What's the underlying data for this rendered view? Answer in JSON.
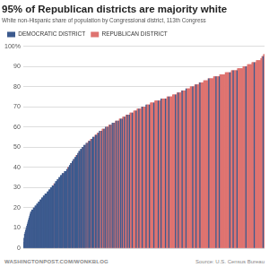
{
  "chart_data": {
    "type": "bar",
    "title": "95% of Republican districts are majority white",
    "subtitle": "White non-Hispanic share of population by Congressional district, 113th Congress",
    "credit": "WASHINGTONPOST.COM/WONKBLOG",
    "source": "Source: U.S. Census Bureau",
    "legend": "top-left",
    "grid": true,
    "tick_labels": "y",
    "ylim": [
      0,
      100
    ],
    "yticks": [
      0,
      10,
      20,
      30,
      40,
      50,
      60,
      70,
      80,
      90,
      {
        "value": 100,
        "label": "100%"
      }
    ],
    "categories": [
      null,
      null,
      null,
      null,
      null,
      null,
      null,
      null,
      null,
      null,
      null,
      null,
      null,
      null,
      null,
      null,
      null,
      null,
      null,
      null,
      null,
      null,
      null,
      null,
      null,
      null,
      null,
      null,
      null,
      null,
      null,
      null,
      null,
      null,
      null,
      null,
      null,
      null,
      null,
      null,
      null,
      null,
      null,
      null,
      null,
      null,
      null,
      null,
      null,
      null,
      null,
      null,
      null,
      null,
      null,
      null,
      null,
      null,
      null,
      null,
      null,
      null,
      null,
      null,
      null,
      null,
      null,
      null,
      null,
      null,
      null,
      null,
      null,
      null,
      null,
      null,
      null,
      null,
      null,
      null,
      null,
      null,
      null,
      null,
      null,
      null,
      null,
      null,
      null,
      null,
      null,
      null,
      null,
      null,
      null,
      null,
      null,
      null,
      null,
      null,
      null,
      null,
      null,
      null,
      null,
      null,
      null,
      null,
      null,
      null,
      null,
      null,
      null,
      null,
      null,
      null,
      null,
      null,
      null,
      null,
      null,
      null,
      null,
      null,
      null,
      null,
      null,
      null,
      null,
      null,
      null,
      null,
      null,
      null,
      null,
      null,
      null,
      null,
      null,
      null,
      null,
      null,
      null,
      null,
      null,
      null,
      null,
      null,
      null,
      null,
      null,
      null,
      null,
      null,
      null,
      null,
      null,
      null,
      null,
      null,
      null,
      null,
      null,
      null,
      null,
      null,
      null,
      null,
      null,
      null,
      null,
      null,
      null,
      null,
      null,
      null,
      null,
      null,
      null,
      null,
      null,
      null,
      null,
      null,
      null,
      null,
      null,
      null,
      null,
      null,
      null,
      null,
      null,
      null,
      null,
      null,
      null,
      null,
      null,
      null,
      null,
      null,
      null,
      null,
      null,
      null,
      null,
      null,
      null,
      null,
      null,
      null,
      null,
      null,
      null,
      null,
      null,
      null,
      null,
      null,
      null,
      null,
      null,
      null,
      null,
      null,
      null,
      null,
      null,
      null,
      null,
      null,
      null,
      null,
      null,
      null,
      null,
      null,
      null,
      null,
      null,
      null,
      null,
      null,
      null,
      null,
      null,
      null,
      null,
      null,
      null,
      null,
      null,
      null,
      null,
      null,
      null,
      null,
      null,
      null,
      null,
      null,
      null,
      null,
      null,
      null,
      null,
      null,
      null,
      null,
      null,
      null,
      null,
      null,
      null,
      null,
      null,
      null,
      null,
      null,
      null,
      null,
      null,
      null,
      null,
      null,
      null,
      null,
      null,
      null,
      null,
      null,
      null,
      null,
      null,
      null,
      null,
      null,
      null,
      null,
      null,
      null,
      null,
      null,
      null,
      null,
      null,
      null,
      null,
      null,
      null,
      null,
      null,
      null,
      null,
      null,
      null,
      null,
      null,
      null,
      null,
      null,
      null,
      null,
      null,
      null,
      null,
      null,
      null,
      null,
      null,
      null,
      null,
      null,
      null,
      null,
      null,
      null,
      null,
      null,
      null,
      null,
      null,
      null,
      null,
      null,
      null,
      null,
      null,
      null,
      null,
      null,
      null,
      null,
      null,
      null,
      null,
      null,
      null,
      null,
      null,
      null,
      null,
      null,
      null,
      null,
      null,
      null,
      null,
      null,
      null,
      null,
      null,
      null,
      null,
      null,
      null,
      null,
      null,
      null,
      null,
      null,
      null,
      null,
      null,
      null,
      null,
      null,
      null,
      null,
      null,
      null,
      null,
      null,
      null,
      null,
      null,
      null,
      null,
      null,
      null,
      null,
      null,
      null,
      null,
      null,
      null,
      null,
      null,
      null,
      null,
      null,
      null,
      null,
      null,
      null,
      null,
      null,
      null,
      null,
      null,
      null,
      null,
      null,
      null,
      null,
      null,
      null,
      null,
      null,
      null,
      null,
      null,
      null,
      null
    ],
    "series": [
      {
        "name": "DEMOCRATIC DISTRICT",
        "color": "#3c5a8e",
        "values": [
          3,
          5,
          7,
          8,
          9,
          10,
          11,
          12,
          13,
          14,
          15,
          16,
          17,
          18,
          18,
          19,
          19,
          19,
          20,
          20,
          20,
          21,
          21,
          21,
          22,
          22,
          22,
          23,
          23,
          23,
          24,
          24,
          24,
          25,
          25,
          25,
          26,
          26,
          26,
          27,
          null,
          27,
          27,
          28,
          28,
          28,
          29,
          29,
          29,
          30,
          30,
          30,
          31,
          31,
          31,
          null,
          32,
          32,
          33,
          33,
          33,
          34,
          34,
          null,
          35,
          35,
          35,
          36,
          36,
          36,
          37,
          37,
          null,
          37,
          38,
          38,
          38,
          38,
          39,
          39,
          null,
          40,
          40,
          41,
          41,
          42,
          null,
          42,
          43,
          43,
          44,
          null,
          44,
          45,
          45,
          null,
          46,
          46,
          47,
          null,
          48,
          48,
          null,
          49,
          49,
          null,
          50,
          null,
          50,
          51,
          null,
          51,
          null,
          52,
          null,
          null,
          52,
          null,
          53,
          null,
          53,
          null,
          null,
          54,
          null,
          55,
          null,
          55,
          null,
          null,
          56,
          null,
          56,
          null,
          null,
          57,
          null,
          58,
          null,
          null,
          null,
          58,
          null,
          null,
          null,
          59,
          null,
          null,
          60,
          null,
          null,
          null,
          60,
          null,
          null,
          null,
          61,
          null,
          null,
          null,
          62,
          null,
          null,
          62,
          null,
          null,
          null,
          63,
          null,
          null,
          null,
          63,
          null,
          null,
          null,
          64,
          null,
          null,
          64,
          null,
          null,
          null,
          65,
          null,
          null,
          null,
          null,
          66,
          null,
          null,
          null,
          66,
          null,
          null,
          null,
          null,
          67,
          null,
          null,
          null,
          null,
          null,
          null,
          68,
          null,
          null,
          null,
          null,
          69,
          null,
          null,
          null,
          null,
          null,
          70,
          null,
          null,
          null,
          null,
          null,
          null,
          71,
          null,
          null,
          null,
          null,
          null,
          71,
          null,
          null,
          null,
          null,
          null,
          null,
          null,
          72,
          null,
          null,
          null,
          null,
          null,
          null,
          null,
          73,
          null,
          null,
          null,
          null,
          74,
          null,
          null,
          null,
          null,
          null,
          null,
          null,
          74,
          null,
          null,
          null,
          null,
          null,
          75,
          null,
          null,
          null,
          null,
          null,
          null,
          null,
          null,
          null,
          null,
          null,
          76,
          null,
          null,
          null,
          null,
          77,
          null,
          null,
          null,
          null,
          null,
          null,
          78,
          null,
          null,
          null,
          null,
          null,
          null,
          79,
          null,
          null,
          null,
          null,
          null,
          null,
          null,
          null,
          null,
          null,
          null,
          80,
          null,
          null,
          null,
          null,
          null,
          81,
          null,
          null,
          null,
          null,
          null,
          null,
          82,
          null,
          null,
          null,
          null,
          null,
          null,
          null,
          null,
          null,
          null,
          null,
          null,
          null,
          null,
          null,
          84,
          null,
          null,
          null,
          null,
          null,
          null,
          null,
          null,
          null,
          null,
          null,
          null,
          85,
          null,
          null,
          null,
          null,
          null,
          85,
          null,
          null,
          null,
          null,
          null,
          null,
          null,
          null,
          null,
          null,
          null,
          null,
          null,
          null,
          null,
          null,
          null,
          null,
          87,
          null,
          null,
          null,
          null,
          null,
          88,
          null,
          null,
          null,
          null,
          null,
          null,
          88,
          null,
          null,
          null,
          null,
          null,
          null,
          null,
          null,
          null,
          null,
          null,
          null,
          null,
          null,
          null,
          90,
          null,
          null,
          null,
          null,
          null,
          null,
          null,
          null,
          null,
          null,
          null,
          null,
          null,
          null,
          92,
          null,
          null,
          null,
          null,
          null,
          null,
          null,
          null,
          null,
          null,
          null,
          null,
          null,
          null,
          null,
          95,
          null,
          null
        ]
      },
      {
        "name": "REPUBLICAN DISTRICT",
        "color": "#de7370",
        "values": [
          null,
          null,
          null,
          null,
          null,
          null,
          null,
          null,
          null,
          null,
          null,
          null,
          null,
          null,
          null,
          null,
          null,
          null,
          null,
          null,
          null,
          null,
          null,
          null,
          null,
          null,
          null,
          null,
          null,
          null,
          null,
          null,
          null,
          null,
          null,
          null,
          null,
          null,
          null,
          null,
          27,
          null,
          null,
          null,
          null,
          null,
          null,
          null,
          null,
          null,
          null,
          null,
          null,
          null,
          null,
          32,
          null,
          null,
          null,
          null,
          null,
          null,
          null,
          34,
          null,
          null,
          null,
          null,
          null,
          null,
          null,
          null,
          37,
          null,
          null,
          null,
          null,
          null,
          null,
          null,
          40,
          null,
          null,
          null,
          null,
          null,
          42,
          null,
          null,
          null,
          null,
          44,
          null,
          null,
          null,
          46,
          null,
          null,
          null,
          47,
          null,
          null,
          48,
          null,
          null,
          49,
          null,
          50,
          null,
          null,
          51,
          null,
          51,
          null,
          52,
          52,
          null,
          53,
          null,
          53,
          null,
          54,
          54,
          null,
          54,
          null,
          55,
          null,
          55,
          56,
          null,
          56,
          null,
          57,
          57,
          null,
          57,
          null,
          58,
          58,
          58,
          null,
          59,
          59,
          59,
          null,
          59,
          59,
          null,
          60,
          60,
          60,
          null,
          60,
          61,
          61,
          null,
          61,
          61,
          61,
          null,
          62,
          62,
          null,
          62,
          62,
          63,
          null,
          63,
          63,
          63,
          null,
          63,
          64,
          64,
          null,
          64,
          64,
          null,
          65,
          65,
          65,
          null,
          65,
          65,
          66,
          66,
          null,
          66,
          66,
          66,
          null,
          67,
          67,
          67,
          67,
          null,
          67,
          67,
          68,
          68,
          68,
          68,
          null,
          68,
          69,
          69,
          69,
          null,
          69,
          69,
          69,
          69,
          70,
          null,
          70,
          70,
          70,
          70,
          70,
          70,
          null,
          71,
          71,
          71,
          71,
          71,
          null,
          71,
          72,
          72,
          72,
          72,
          72,
          72,
          null,
          72,
          73,
          73,
          73,
          73,
          73,
          73,
          null,
          73,
          73,
          73,
          73,
          null,
          74,
          74,
          74,
          74,
          74,
          74,
          74,
          null,
          74,
          74,
          75,
          75,
          75,
          null,
          75,
          75,
          75,
          75,
          75,
          75,
          76,
          76,
          76,
          76,
          76,
          null,
          76,
          76,
          77,
          77,
          null,
          77,
          77,
          77,
          77,
          77,
          78,
          null,
          78,
          78,
          78,
          78,
          78,
          78,
          null,
          79,
          79,
          79,
          79,
          79,
          79,
          79,
          80,
          80,
          80,
          80,
          null,
          80,
          80,
          80,
          81,
          81,
          null,
          81,
          81,
          81,
          81,
          81,
          82,
          null,
          82,
          82,
          82,
          82,
          82,
          82,
          83,
          83,
          83,
          83,
          83,
          83,
          83,
          83,
          84,
          null,
          84,
          84,
          84,
          84,
          84,
          84,
          84,
          84,
          85,
          85,
          85,
          85,
          null,
          85,
          85,
          85,
          85,
          85,
          null,
          86,
          86,
          86,
          86,
          86,
          86,
          86,
          86,
          86,
          86,
          87,
          87,
          87,
          87,
          87,
          87,
          87,
          87,
          null,
          87,
          87,
          88,
          88,
          88,
          null,
          88,
          88,
          88,
          88,
          88,
          88,
          null,
          89,
          89,
          89,
          89,
          89,
          89,
          89,
          89,
          89,
          89,
          90,
          90,
          90,
          90,
          90,
          null,
          90,
          90,
          91,
          91,
          91,
          91,
          91,
          91,
          91,
          91,
          92,
          92,
          92,
          92,
          null,
          92,
          92,
          92,
          93,
          93,
          93,
          93,
          93,
          93,
          93,
          93,
          94,
          94,
          95,
          95,
          null,
          96,
          96
        ]
      }
    ]
  }
}
